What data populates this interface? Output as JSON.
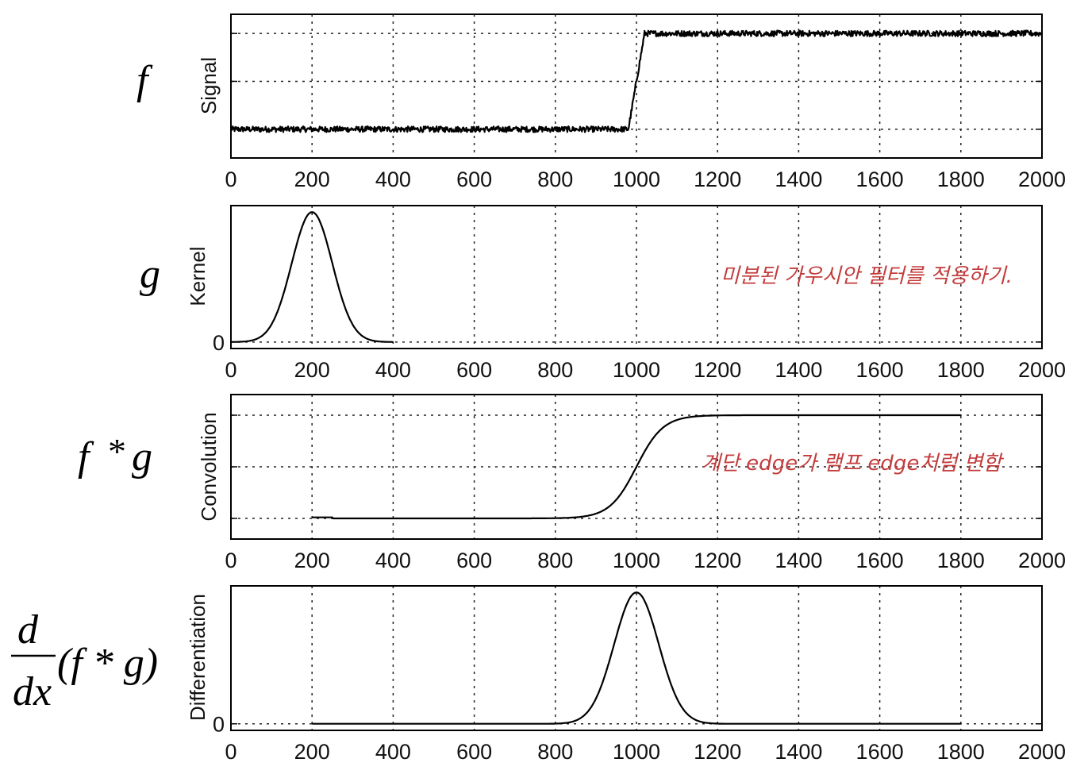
{
  "chart_data": [
    {
      "type": "line",
      "ylabel": "Signal",
      "math_label": "f",
      "xlim": [
        0,
        2000
      ],
      "ylim": [
        -0.3,
        1.2
      ],
      "x_ticks": [
        0,
        200,
        400,
        600,
        800,
        1000,
        1200,
        1400,
        1600,
        1800,
        2000
      ],
      "x_tick_labels": [
        "0",
        "200",
        "400",
        "600",
        "800",
        "1000",
        "1200",
        "1400",
        "1600",
        "1800",
        "2000"
      ],
      "y_grid": [
        0,
        0.5,
        1.0
      ],
      "y_tick_labels": [],
      "series": [
        {
          "name": "signal",
          "x": [
            0,
            980,
            1020,
            2000
          ],
          "values": [
            0,
            0,
            1,
            1
          ],
          "noise": 0.03
        }
      ]
    },
    {
      "type": "line",
      "ylabel": "Kernel",
      "math_label": "g",
      "xlim": [
        0,
        2000
      ],
      "ylim": [
        -0.05,
        1.05
      ],
      "x_ticks": [
        0,
        200,
        400,
        600,
        800,
        1000,
        1200,
        1400,
        1600,
        1800,
        2000
      ],
      "x_tick_labels": [
        "0",
        "200",
        "400",
        "600",
        "800",
        "1000",
        "1200",
        "1400",
        "1600",
        "1800",
        "2000"
      ],
      "y_grid": [
        0
      ],
      "y_tick_labels": [
        "0"
      ],
      "annotation": "미분된 가우시안 필터를 적용하기.",
      "series": [
        {
          "name": "gaussian kernel",
          "x_range": [
            0,
            400
          ],
          "gaussian": {
            "mu": 200,
            "sigma": 50,
            "amp": 1.0
          }
        }
      ]
    },
    {
      "type": "line",
      "ylabel": "Convolution",
      "math_label": "f * g",
      "xlim": [
        0,
        2000
      ],
      "ylim": [
        -0.2,
        1.2
      ],
      "x_ticks": [
        0,
        200,
        400,
        600,
        800,
        1000,
        1200,
        1400,
        1600,
        1800,
        2000
      ],
      "x_tick_labels": [
        "0",
        "200",
        "400",
        "600",
        "800",
        "1000",
        "1200",
        "1400",
        "1600",
        "1800",
        "2000"
      ],
      "y_grid": [
        0,
        0.5,
        1.0
      ],
      "y_tick_labels": [],
      "annotation": "계단 edge가 램프 edge처럼 변함",
      "series": [
        {
          "name": "convolution",
          "x_range": [
            200,
            1800
          ],
          "sigmoid": {
            "center": 1000,
            "width": 55,
            "amp": 1.0
          },
          "start_bump": [
            200,
            250,
            0.01
          ]
        }
      ]
    },
    {
      "type": "line",
      "ylabel": "Differentiation",
      "math_label": "d/dx (f * g)",
      "xlim": [
        0,
        2000
      ],
      "ylim": [
        -0.05,
        1.05
      ],
      "x_ticks": [
        0,
        200,
        400,
        600,
        800,
        1000,
        1200,
        1400,
        1600,
        1800,
        2000
      ],
      "x_tick_labels": [
        "0",
        "200",
        "400",
        "600",
        "800",
        "1000",
        "1200",
        "1400",
        "1600",
        "1800",
        "2000"
      ],
      "y_grid": [
        0
      ],
      "y_tick_labels": [
        "0"
      ],
      "series": [
        {
          "name": "derivative",
          "x_range": [
            200,
            1800
          ],
          "gaussian": {
            "mu": 1000,
            "sigma": 55,
            "amp": 1.0
          }
        }
      ]
    }
  ],
  "equation_labels": {
    "p1": "f",
    "p2": "g",
    "p3_f": "f",
    "p3_star": "*",
    "p3_g": "g",
    "p4_num": "d",
    "p4_den": "dx",
    "p4_rest": "(f * g)"
  }
}
